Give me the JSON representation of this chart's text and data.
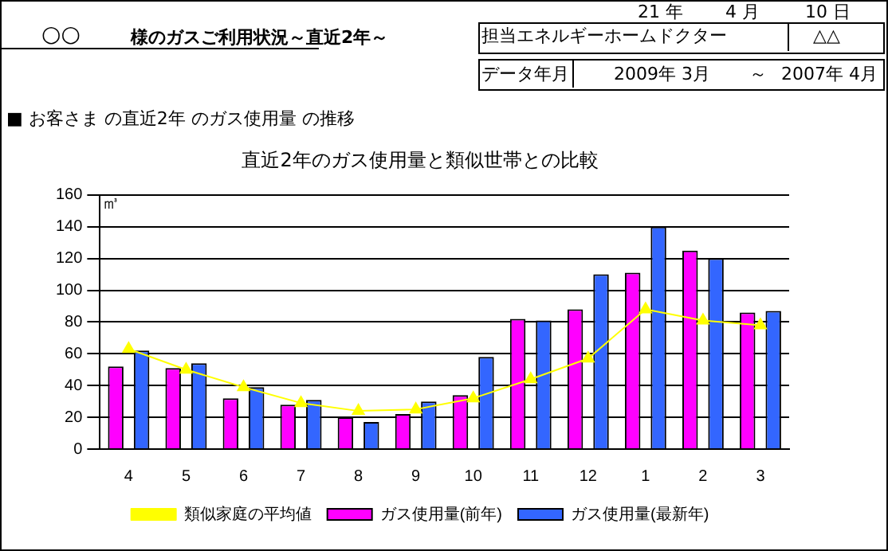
{
  "chart_data": {
    "type": "bar",
    "title": "直近2年のガス使用量と類似世帯との比較",
    "subtitle": "■ お客さま の直近2年 のガス使用量 の推移",
    "ylabel": "㎥",
    "annotations": [
      "○○",
      "様のガスご利用状況～直近2年～",
      "21 年",
      "4 月",
      "10 日",
      "担当エネルギーホームドクター",
      "△△",
      "データ年月",
      "2009年 3月",
      "～",
      "2007年 4月"
    ],
    "categories": [
      "4",
      "5",
      "6",
      "7",
      "8",
      "9",
      "10",
      "11",
      "12",
      "1",
      "2",
      "3"
    ],
    "series": [
      {
        "name": "ガス使用量(前年)",
        "color": "#ff00ff",
        "values": [
          52,
          51,
          32,
          28,
          20,
          22,
          34,
          82,
          88,
          111,
          125,
          86
        ]
      },
      {
        "name": "ガス使用量(最新年)",
        "color": "#3366ff",
        "values": [
          62,
          54,
          39,
          31,
          17,
          30,
          58,
          81,
          110,
          140,
          120,
          87
        ]
      },
      {
        "name": "類似家庭の平均値",
        "type": "line",
        "color": "#ffff00",
        "marker": "triangle",
        "values": [
          63,
          50,
          39,
          29,
          24,
          25,
          32,
          44,
          57,
          88,
          81,
          78
        ]
      }
    ],
    "ylim": [
      0,
      160
    ],
    "yticks": [
      0,
      20,
      40,
      60,
      80,
      100,
      120,
      140,
      160
    ],
    "grid": "y",
    "legend": "bottom"
  }
}
